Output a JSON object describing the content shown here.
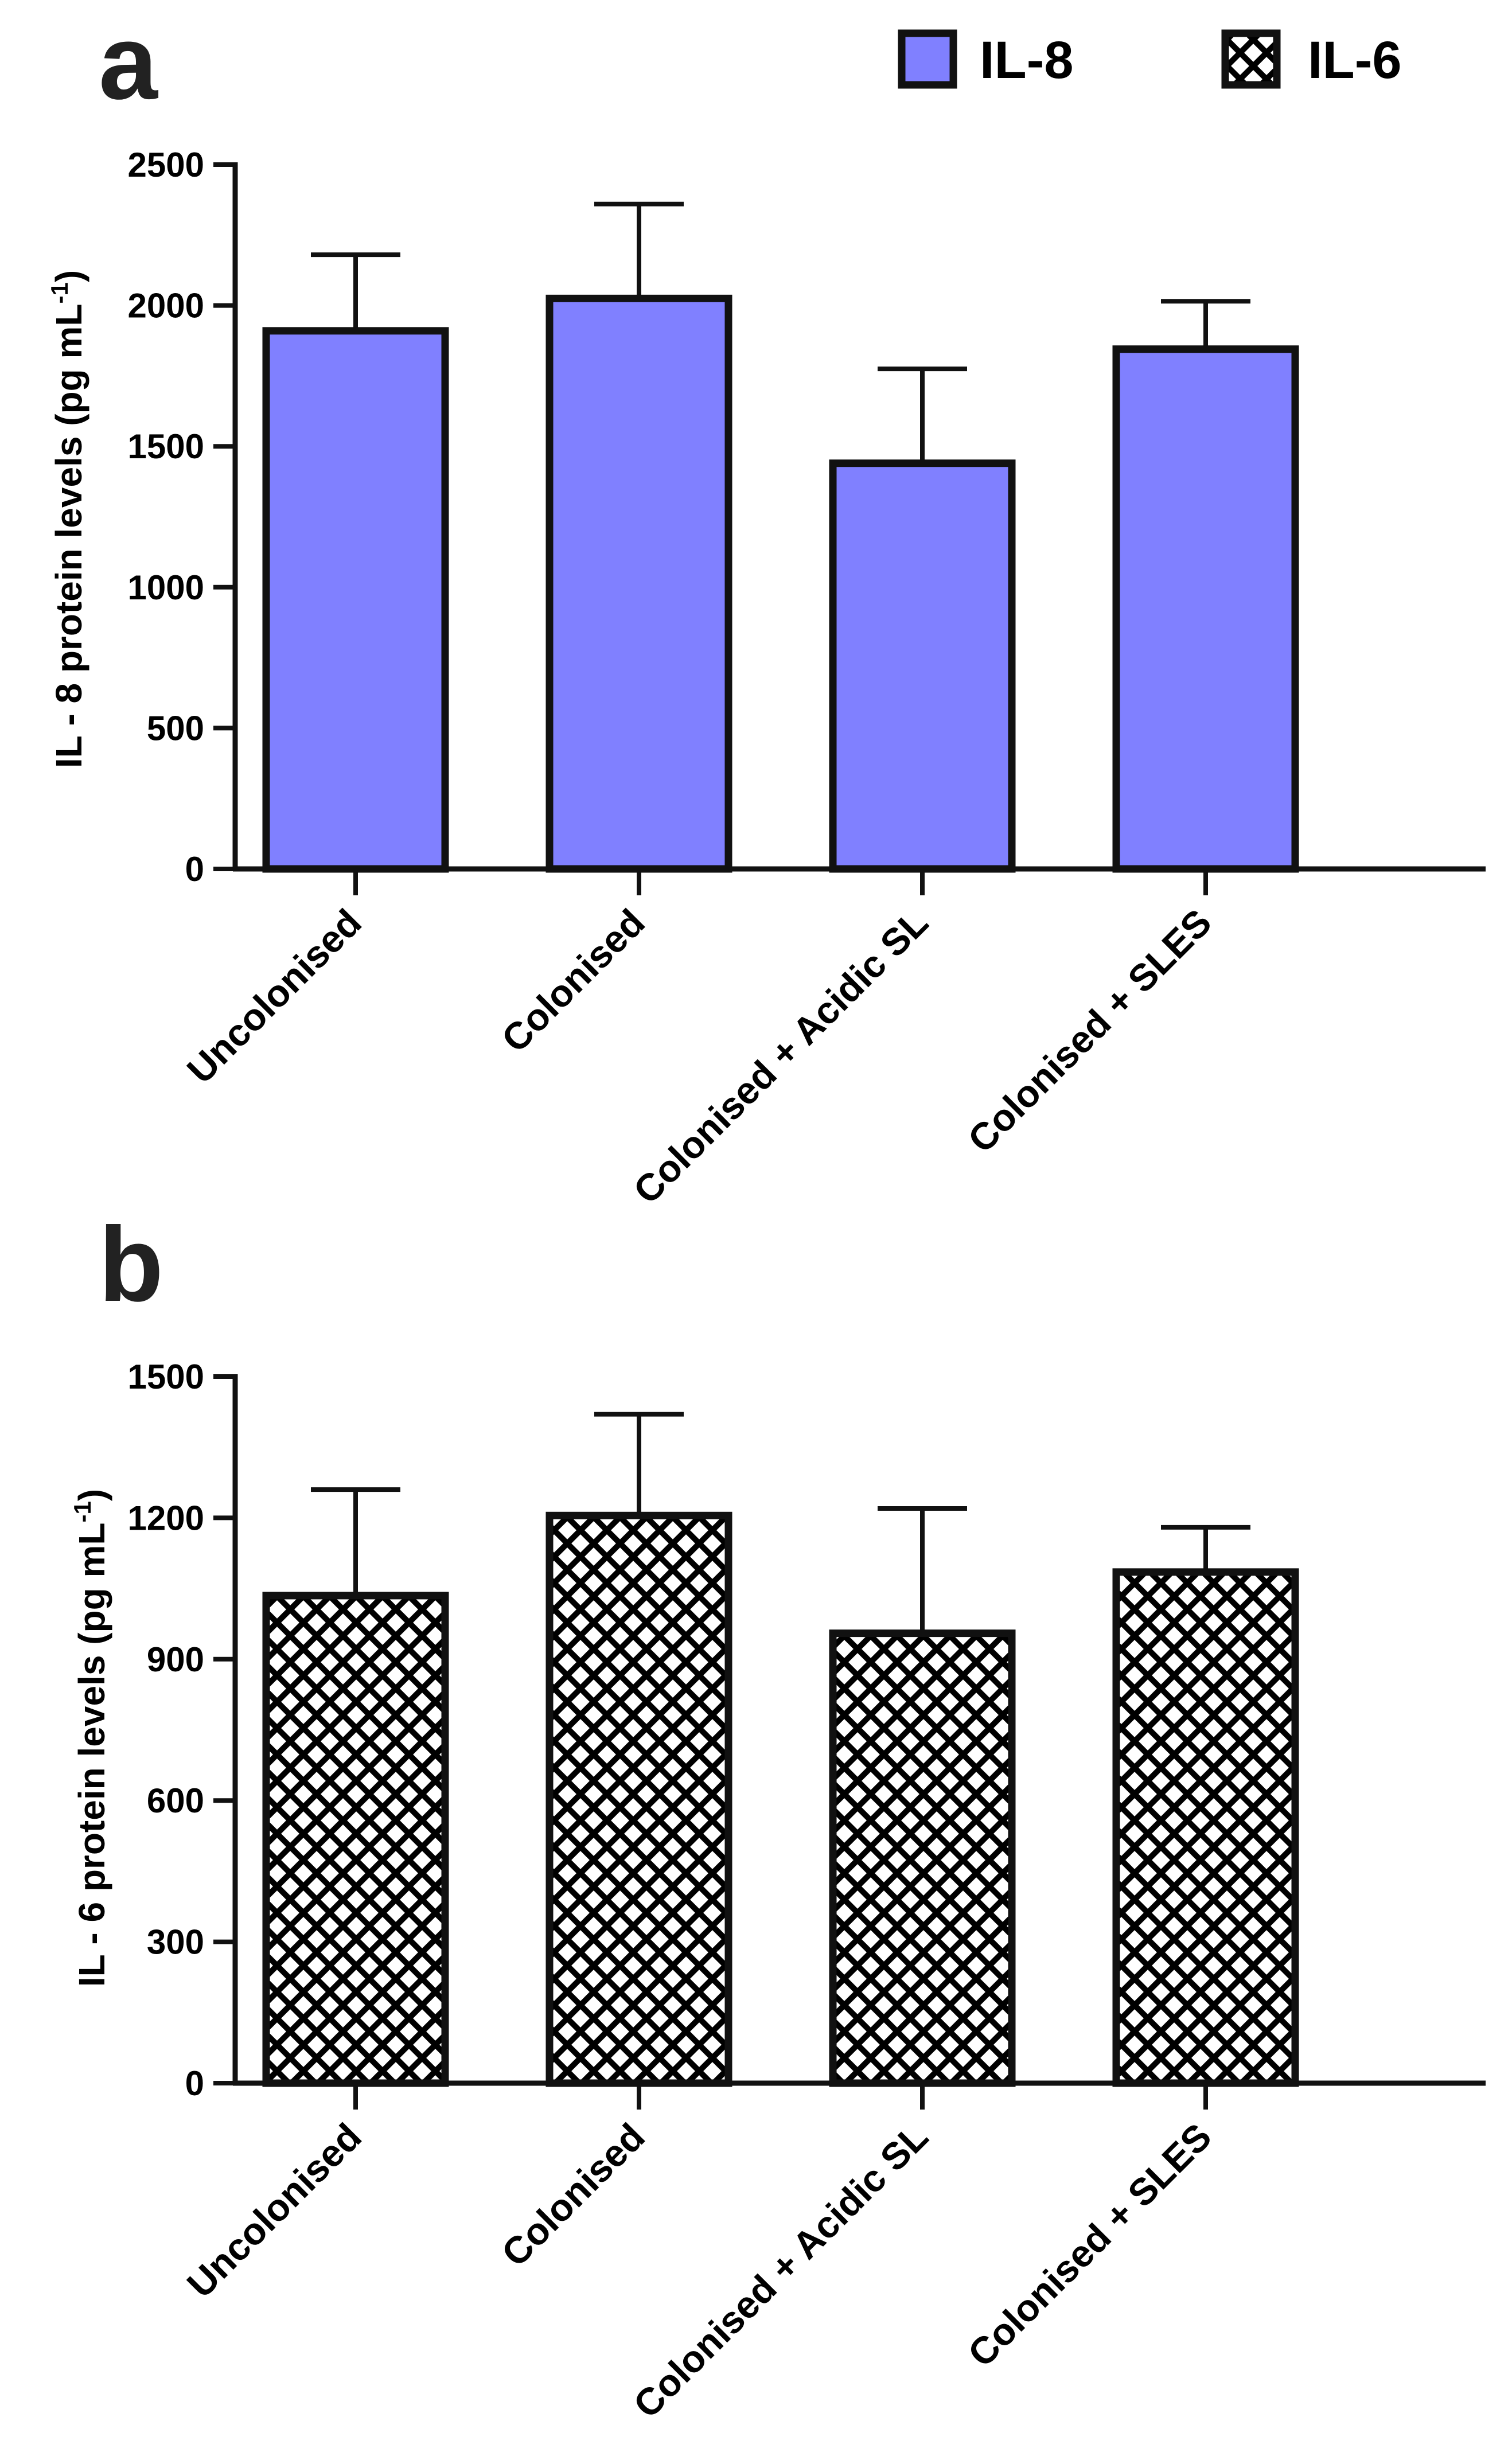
{
  "legend": {
    "items": [
      {
        "label": "IL-8",
        "style": "solid",
        "color": "#8080ff"
      },
      {
        "label": "IL-6",
        "style": "crosshatch",
        "color": "#000000"
      }
    ]
  },
  "colors": {
    "il8_fill": "#8080ff",
    "outline": "#111111"
  },
  "chart_data": [
    {
      "panel": "a",
      "type": "bar",
      "title": "",
      "categories": [
        "Uncolonised",
        "Colonised",
        "Colonised + Acidic SL",
        "Colonised + SLES"
      ],
      "values": [
        1910,
        2025,
        1440,
        1845
      ],
      "error_upper": [
        2180,
        2360,
        1775,
        2015
      ],
      "ylabel": "IL - 8 protein levels (pg mL",
      "ylabel_superscript": "-1",
      "ylabel_close": ")",
      "xlabel": "",
      "ylim": [
        0,
        2500
      ],
      "yticks": [
        0,
        500,
        1000,
        1500,
        2000,
        2500
      ],
      "fill": "solid",
      "grid": false
    },
    {
      "panel": "b",
      "type": "bar",
      "title": "",
      "categories": [
        "Uncolonised",
        "Colonised",
        "Colonised + Acidic SL",
        "Colonised + SLES"
      ],
      "values": [
        1035,
        1205,
        955,
        1085
      ],
      "error_upper": [
        1260,
        1420,
        1220,
        1180
      ],
      "ylabel": "IL - 6 protein levels (pg mL",
      "ylabel_superscript": "-1",
      "ylabel_close": ")",
      "xlabel": "",
      "ylim": [
        0,
        1500
      ],
      "yticks": [
        0,
        300,
        600,
        900,
        1200,
        1500
      ],
      "fill": "crosshatch",
      "grid": false
    }
  ]
}
